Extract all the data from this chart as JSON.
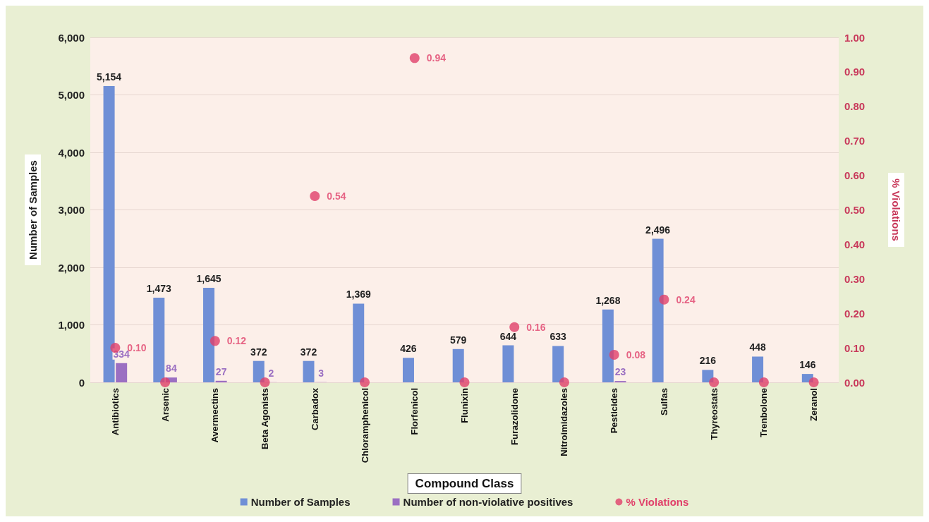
{
  "chart_data": {
    "type": "bar",
    "xlabel": "Compound Class",
    "ylabel": "Number of Samples",
    "y2label": "% Violations",
    "categories": [
      "Antibiotics",
      "Arsenic",
      "Avermectins",
      "Beta Agonists",
      "Carbadox",
      "Chloramphenicol",
      "Florfenicol",
      "Flunixin",
      "Furazolidone",
      "Nitroimidazoles",
      "Pesticides",
      "Sulfas",
      "Thyreostats",
      "Trenbolone",
      "Zeranol"
    ],
    "series": [
      {
        "name": "Number of Samples",
        "color": "#6f8fd6",
        "values": [
          5154,
          1473,
          1645,
          372,
          372,
          1369,
          426,
          579,
          644,
          633,
          1268,
          2496,
          216,
          448,
          146
        ],
        "value_labels": [
          "5,154",
          "1,473",
          "1,645",
          "372",
          "372",
          "1,369",
          "426",
          "579",
          "644",
          "633",
          "1,268",
          "2,496",
          "216",
          "448",
          "146"
        ]
      },
      {
        "name": "Number of non-violative positives",
        "color": "#9b6fc2",
        "values": [
          334,
          84,
          27,
          2,
          3,
          0,
          0,
          0,
          0,
          0,
          23,
          0,
          0,
          0,
          0
        ],
        "value_labels": [
          "334",
          "84",
          "27",
          "2",
          "3",
          null,
          null,
          null,
          null,
          null,
          "23",
          null,
          null,
          null,
          null
        ]
      },
      {
        "name": "% Violations",
        "type": "scatter",
        "axis": "y2",
        "color": "#e0406a",
        "values": [
          0.1,
          0,
          0.12,
          0,
          0.54,
          0,
          0.94,
          0,
          0.16,
          0,
          0.08,
          0.24,
          0,
          0,
          0
        ],
        "value_labels": [
          "0.10",
          null,
          "0.12",
          null,
          "0.54",
          null,
          "0.94",
          null,
          "0.16",
          null,
          "0.08",
          "0.24",
          null,
          null,
          null
        ]
      }
    ],
    "ylim": [
      0,
      6000
    ],
    "yticks": [
      {
        "value": 0,
        "label": "0"
      },
      {
        "value": 1000,
        "label": "1,000"
      },
      {
        "value": 2000,
        "label": "2,000"
      },
      {
        "value": 3000,
        "label": "3,000"
      },
      {
        "value": 4000,
        "label": "4,000"
      },
      {
        "value": 5000,
        "label": "5,000"
      },
      {
        "value": 6000,
        "label": "6,000"
      }
    ],
    "y2lim": [
      0,
      1
    ],
    "y2ticks": [
      {
        "value": 0,
        "label": "0.00"
      },
      {
        "value": 0.1,
        "label": "0.10"
      },
      {
        "value": 0.2,
        "label": "0.20"
      },
      {
        "value": 0.3,
        "label": "0.30"
      },
      {
        "value": 0.4,
        "label": "0.40"
      },
      {
        "value": 0.5,
        "label": "0.50"
      },
      {
        "value": 0.6,
        "label": "0.60"
      },
      {
        "value": 0.7,
        "label": "0.70"
      },
      {
        "value": 0.8,
        "label": "0.80"
      },
      {
        "value": 0.9,
        "label": "0.90"
      },
      {
        "value": 1,
        "label": "1.00"
      }
    ],
    "grid": "y",
    "legend": "bottom",
    "marker": "circle"
  }
}
